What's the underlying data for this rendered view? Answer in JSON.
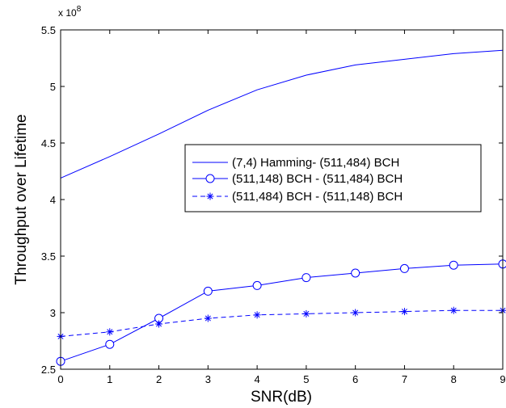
{
  "chart_data": {
    "type": "line",
    "xlabel": "SNR(dB)",
    "ylabel": "Throughput over Lifetime",
    "y_multiplier": "x 10",
    "y_exponent": "8",
    "xlim": [
      0,
      9
    ],
    "ylim": [
      2.5,
      5.5
    ],
    "x_ticks": [
      "0",
      "1",
      "2",
      "3",
      "4",
      "5",
      "6",
      "7",
      "8",
      "9"
    ],
    "y_ticks": [
      "2.5",
      "3",
      "3.5",
      "4",
      "4.5",
      "5",
      "5.5"
    ],
    "grid": false,
    "legend_position": "center-right",
    "x": [
      0,
      1,
      2,
      3,
      4,
      5,
      6,
      7,
      8,
      9
    ],
    "series": [
      {
        "name": "(7,4) Hamming- (511,484) BCH",
        "values": [
          4.19,
          4.38,
          4.58,
          4.79,
          4.97,
          5.1,
          5.19,
          5.24,
          5.29,
          5.32
        ],
        "color": "#0000ff",
        "line": "solid",
        "marker": "none"
      },
      {
        "name": "(511,148) BCH - (511,484) BCH",
        "values": [
          2.57,
          2.72,
          2.95,
          3.19,
          3.24,
          3.31,
          3.35,
          3.39,
          3.42,
          3.43
        ],
        "color": "#0000ff",
        "line": "solid",
        "marker": "circle"
      },
      {
        "name": "(511,484) BCH - (511,148) BCH",
        "values": [
          2.79,
          2.83,
          2.9,
          2.95,
          2.98,
          2.99,
          3.0,
          3.01,
          3.02,
          3.02
        ],
        "color": "#0000ff",
        "line": "dashed",
        "marker": "star"
      }
    ]
  }
}
